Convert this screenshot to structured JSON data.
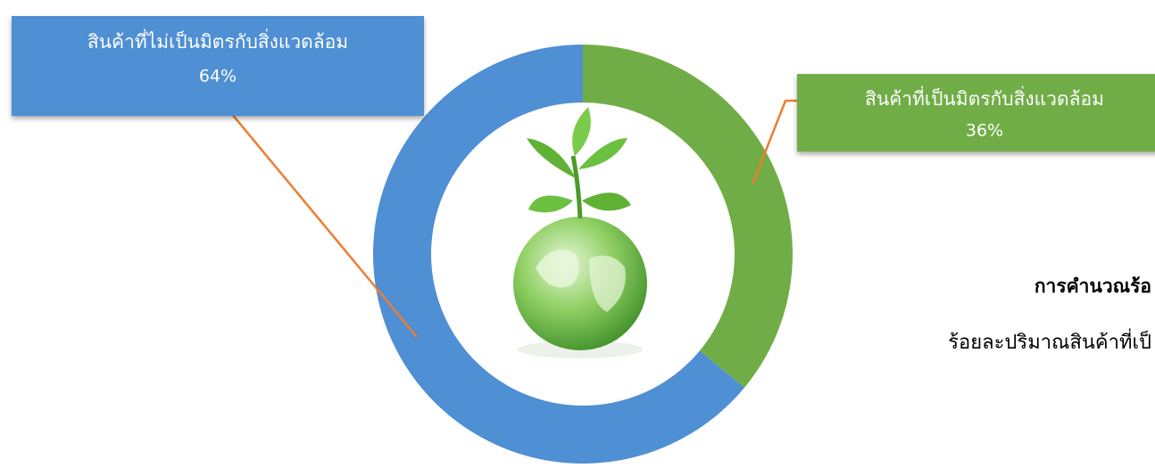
{
  "chart_data": {
    "type": "donut",
    "categories": [
      "สินค้าที่เป็นมิตรกับสิ่งแวดล้อม",
      "สินค้าที่ไม่เป็นมิตรกับสิ่งแวดล้อม"
    ],
    "values": [
      36,
      64
    ],
    "value_labels": [
      "36%",
      "64%"
    ],
    "colors": [
      "#70ad47",
      "#4f8fd3"
    ],
    "notes": [
      "การคำนวณร้อ",
      "ร้อยละปริมาณสินค้าที่เป็"
    ]
  }
}
